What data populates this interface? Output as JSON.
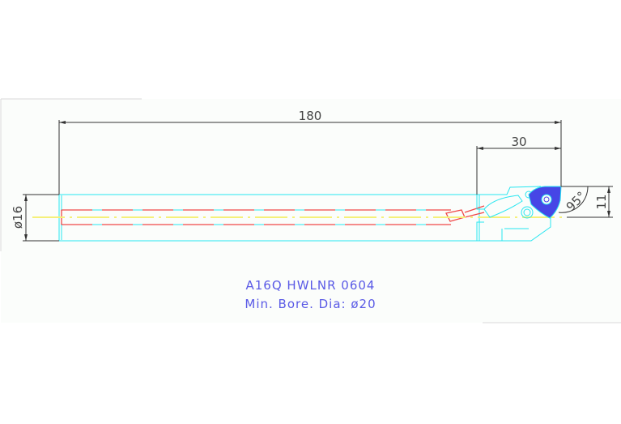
{
  "drawing": {
    "dimensions": {
      "overall_length": "180",
      "head_length": "30",
      "shank_diameter": "ø16",
      "offset": "11",
      "approach_angle": "95°"
    },
    "title": "A16Q HWLNR 0604",
    "subtitle": "Min. Bore. Dia: ø20",
    "colors": {
      "outline": "#27e6f0",
      "coolant": "#f04848",
      "centerline": "#f5f07a",
      "insert": "#4646e6",
      "dimension": "#333333",
      "text": "#5a5ae6"
    }
  }
}
